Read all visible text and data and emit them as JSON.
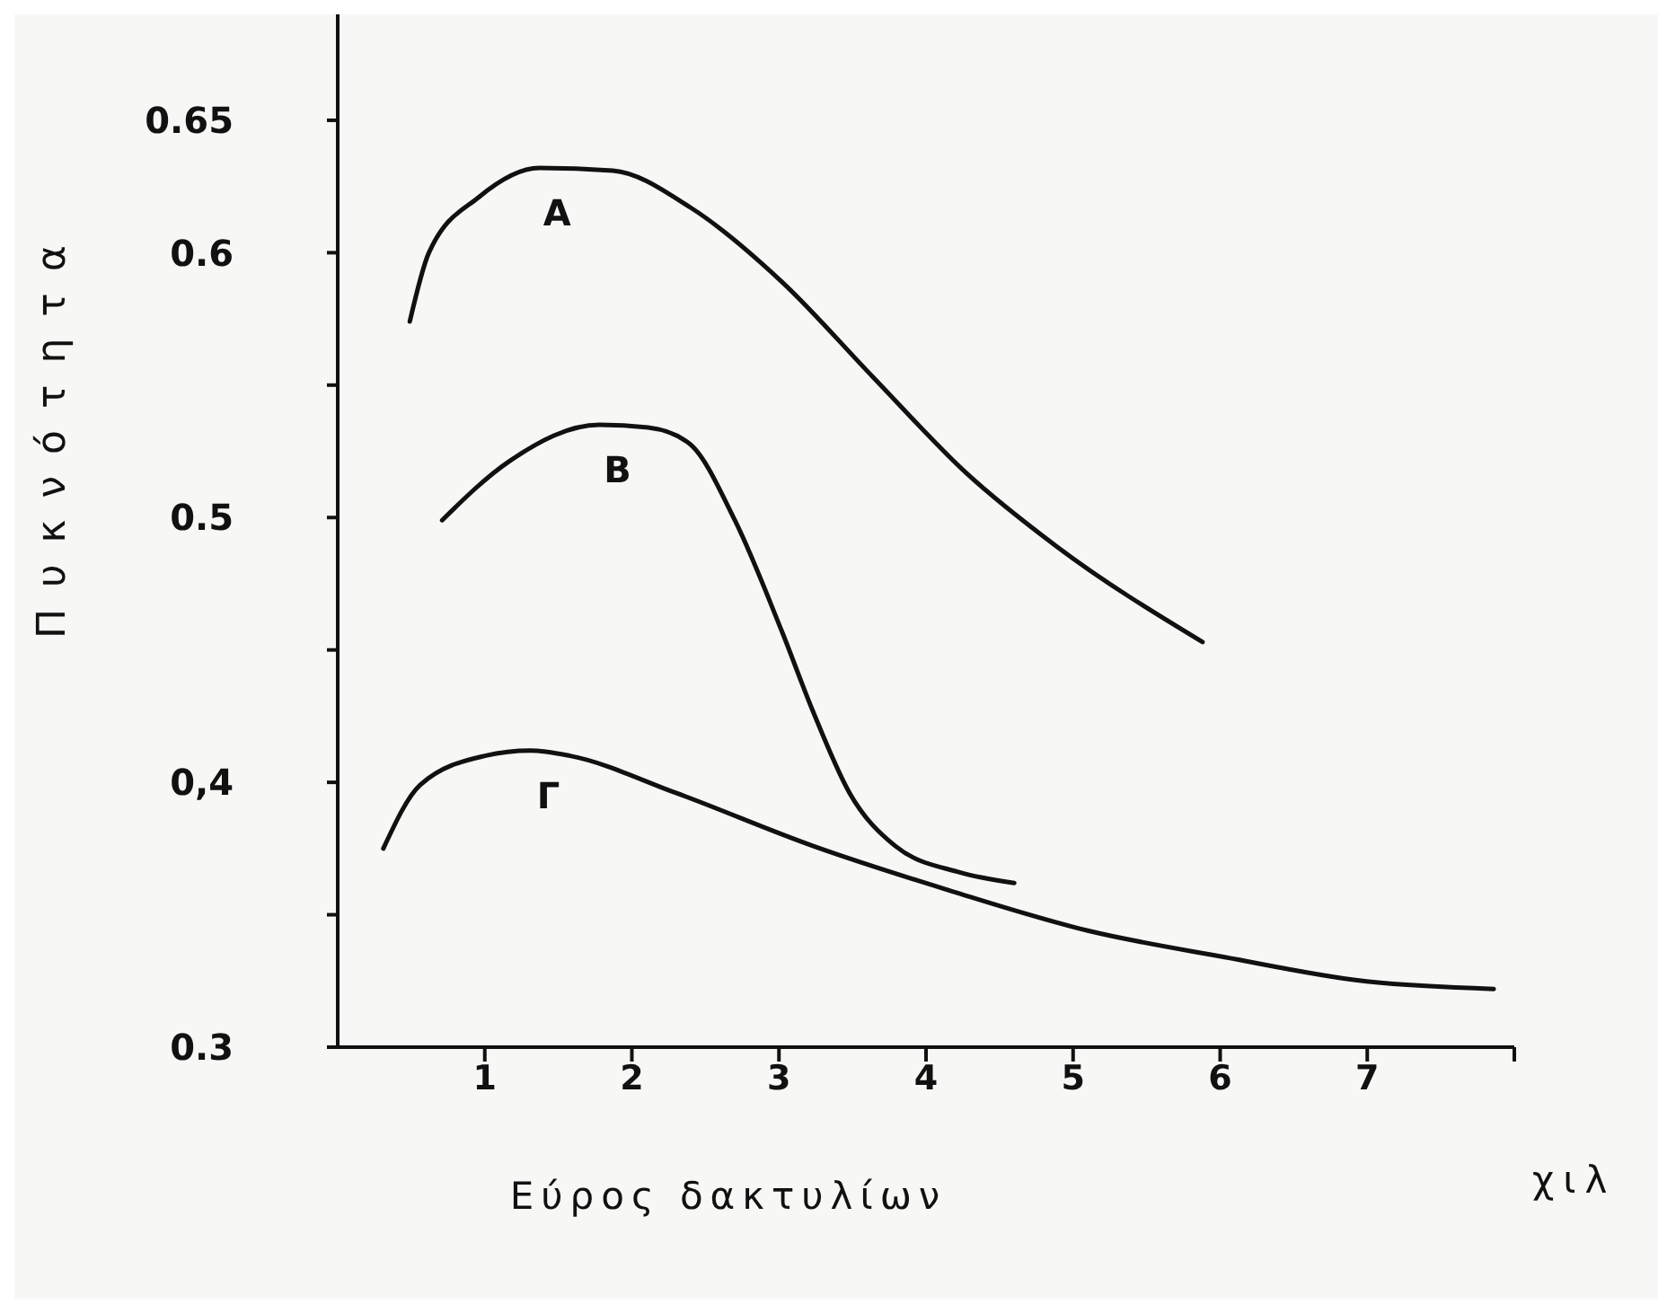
{
  "chart_data": {
    "type": "line",
    "xlabel": "Εύρος δακτυλίων",
    "ylabel": "Πυκνότητα",
    "annotations": [
      "χιλ"
    ],
    "xlim": [
      0,
      8
    ],
    "xticks": [
      1,
      2,
      3,
      4,
      5,
      6,
      7,
      {
        "value": 8,
        "label": null
      }
    ],
    "ylim": [
      0.3,
      0.69
    ],
    "yticks": [
      0.3,
      {
        "value": 0.35,
        "label": null
      },
      {
        "value": 0.4,
        "label": "0,4"
      },
      {
        "value": 0.45,
        "label": null
      },
      0.5,
      {
        "value": 0.55,
        "label": null
      },
      0.6,
      0.65
    ],
    "grid": false,
    "legend": false,
    "marker": "none",
    "line_style": "solid",
    "series": [
      {
        "name": "A",
        "color": "#111111",
        "x": [
          0.49,
          0.62,
          0.96,
          1.37,
          1.87,
          2.4,
          3.02,
          3.64,
          4.27,
          4.89,
          5.88
        ],
        "values": [
          0.574,
          0.6,
          0.621,
          0.632,
          0.631,
          0.617,
          0.589,
          0.553,
          0.517,
          0.489,
          0.453
        ]
      },
      {
        "name": "B",
        "color": "#111111",
        "x": [
          0.71,
          1.16,
          1.78,
          2.11,
          2.39,
          2.7,
          3.02,
          3.23,
          3.48,
          3.79,
          4.23,
          4.6
        ],
        "values": [
          0.499,
          0.521,
          0.535,
          0.534,
          0.528,
          0.499,
          0.457,
          0.427,
          0.396,
          0.376,
          0.366,
          0.362
        ]
      },
      {
        "name": "Γ",
        "color": "#111111",
        "x": [
          0.31,
          0.56,
          1.0,
          1.31,
          1.58,
          2.3,
          3.23,
          4.17,
          5.1,
          6.03,
          6.97,
          7.86
        ],
        "values": [
          0.375,
          0.399,
          0.41,
          0.412,
          0.41,
          0.396,
          0.376,
          0.359,
          0.344,
          0.334,
          0.325,
          0.322
        ]
      }
    ]
  }
}
